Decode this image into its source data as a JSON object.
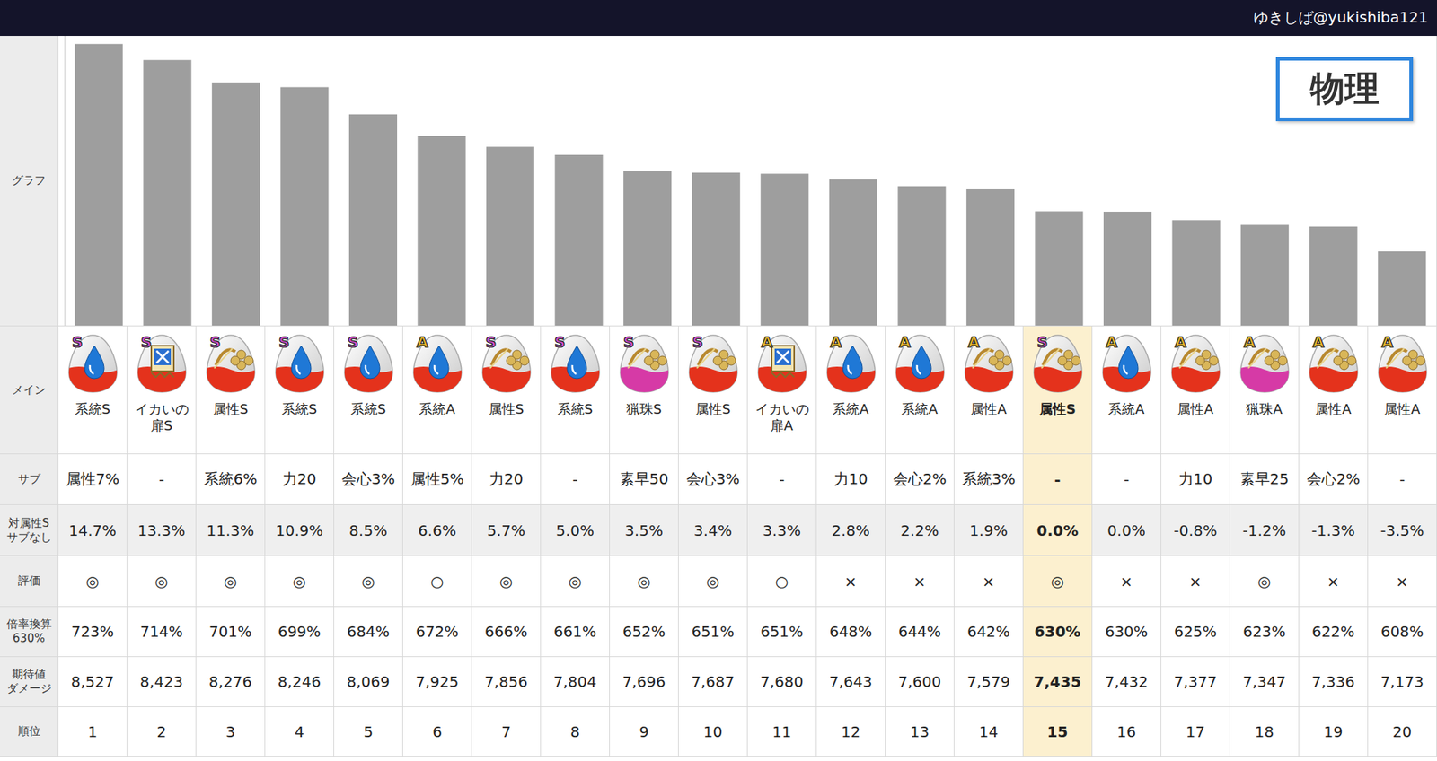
{
  "header": {
    "author": "ゆきしば@yukishiba121",
    "badge": "物理"
  },
  "chart_data": {
    "type": "bar",
    "categories": [
      null,
      null,
      null,
      null,
      null,
      null,
      null,
      null,
      null,
      null,
      null,
      null,
      null,
      null,
      null,
      null,
      null,
      null,
      null,
      null
    ],
    "values": [
      8527,
      8423,
      8276,
      8246,
      8069,
      7925,
      7856,
      7804,
      7696,
      7687,
      7680,
      7643,
      7600,
      7579,
      7435,
      7432,
      7377,
      7347,
      7336,
      7173
    ],
    "color": "#9e9e9e",
    "ylim": [
      6690,
      8580
    ],
    "grid": false,
    "tick_labels": false
  },
  "table": {
    "row_heads": {
      "graph": "グラフ",
      "main": "メイン",
      "sub": "サブ",
      "vs": "対属性S\nサブなし",
      "eval": "評価",
      "mult": "倍率換算\n630%",
      "damage": "期待値\nダメージ",
      "rank": "順位"
    },
    "highlighted_rank": 15,
    "columns": [
      {
        "grade": "S",
        "main": "系統S",
        "sub": "属性7%",
        "vs": "14.7%",
        "eval": "◎",
        "mult": "723%",
        "damage": "8,527",
        "rank": 1
      },
      {
        "grade": "S",
        "main": "イカいの扉S",
        "sub": "-",
        "vs": "13.3%",
        "eval": "◎",
        "mult": "714%",
        "damage": "8,423",
        "rank": 2
      },
      {
        "grade": "S",
        "main": "属性S",
        "sub": "系統6%",
        "vs": "11.3%",
        "eval": "◎",
        "mult": "701%",
        "damage": "8,276",
        "rank": 3
      },
      {
        "grade": "S",
        "main": "系統S",
        "sub": "力20",
        "vs": "10.9%",
        "eval": "◎",
        "mult": "699%",
        "damage": "8,246",
        "rank": 4
      },
      {
        "grade": "S",
        "main": "系統S",
        "sub": "会心3%",
        "vs": "8.5%",
        "eval": "◎",
        "mult": "684%",
        "damage": "8,069",
        "rank": 5
      },
      {
        "grade": "A",
        "main": "系統A",
        "sub": "属性5%",
        "vs": "6.6%",
        "eval": "○",
        "mult": "672%",
        "damage": "7,925",
        "rank": 6
      },
      {
        "grade": "S",
        "main": "属性S",
        "sub": "力20",
        "vs": "5.7%",
        "eval": "◎",
        "mult": "666%",
        "damage": "7,856",
        "rank": 7
      },
      {
        "grade": "S",
        "main": "系統S",
        "sub": "-",
        "vs": "5.0%",
        "eval": "◎",
        "mult": "661%",
        "damage": "7,804",
        "rank": 8
      },
      {
        "grade": "S",
        "main": "猟珠S",
        "sub": "素早50",
        "vs": "3.5%",
        "eval": "◎",
        "mult": "652%",
        "damage": "7,696",
        "rank": 9
      },
      {
        "grade": "S",
        "main": "属性S",
        "sub": "会心3%",
        "vs": "3.4%",
        "eval": "◎",
        "mult": "651%",
        "damage": "7,687",
        "rank": 10
      },
      {
        "grade": "A",
        "main": "イカいの扉A",
        "sub": "-",
        "vs": "3.3%",
        "eval": "○",
        "mult": "651%",
        "damage": "7,680",
        "rank": 11
      },
      {
        "grade": "A",
        "main": "系統A",
        "sub": "力10",
        "vs": "2.8%",
        "eval": "×",
        "mult": "648%",
        "damage": "7,643",
        "rank": 12
      },
      {
        "grade": "A",
        "main": "系統A",
        "sub": "会心2%",
        "vs": "2.2%",
        "eval": "×",
        "mult": "644%",
        "damage": "7,600",
        "rank": 13
      },
      {
        "grade": "A",
        "main": "属性A",
        "sub": "系統3%",
        "vs": "1.9%",
        "eval": "×",
        "mult": "642%",
        "damage": "7,579",
        "rank": 14
      },
      {
        "grade": "S",
        "main": "属性S",
        "sub": "-",
        "vs": "0.0%",
        "eval": "◎",
        "mult": "630%",
        "damage": "7,435",
        "rank": 15
      },
      {
        "grade": "A",
        "main": "系統A",
        "sub": "-",
        "vs": "0.0%",
        "eval": "×",
        "mult": "630%",
        "damage": "7,432",
        "rank": 16
      },
      {
        "grade": "A",
        "main": "属性A",
        "sub": "力10",
        "vs": "-0.8%",
        "eval": "×",
        "mult": "625%",
        "damage": "7,377",
        "rank": 17
      },
      {
        "grade": "A",
        "main": "猟珠A",
        "sub": "素早25",
        "vs": "-1.2%",
        "eval": "◎",
        "mult": "623%",
        "damage": "7,347",
        "rank": 18
      },
      {
        "grade": "A",
        "main": "属性A",
        "sub": "会心2%",
        "vs": "-1.3%",
        "eval": "×",
        "mult": "622%",
        "damage": "7,336",
        "rank": 19
      },
      {
        "grade": "A",
        "main": "属性A",
        "sub": "-",
        "vs": "-3.5%",
        "eval": "×",
        "mult": "608%",
        "damage": "7,173",
        "rank": 20
      }
    ]
  }
}
